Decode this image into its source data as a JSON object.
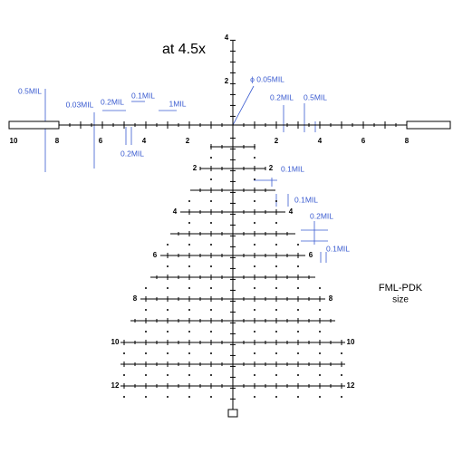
{
  "title": "at 4.5x",
  "reticle_name": "FML-PDK",
  "reticle_note": "size",
  "horizontal_labels": {
    "left": [
      "10",
      "8",
      "6",
      "4",
      "2"
    ],
    "right": [
      "2",
      "4",
      "6",
      "8"
    ]
  },
  "vertical_labels": [
    "4",
    "2"
  ],
  "tree_labels": [
    "2",
    "4",
    "6",
    "8",
    "10",
    "12"
  ],
  "annotations": [
    "0.5MIL",
    "0.03MIL",
    "0.2MIL",
    "0.1MIL",
    "1MIL",
    "0.2MIL",
    "ϕ 0.05MIL",
    "0.2MIL",
    "0.5MIL",
    "0.1MIL",
    "0.1MIL",
    "0.2MIL",
    "0.1MIL"
  ]
}
